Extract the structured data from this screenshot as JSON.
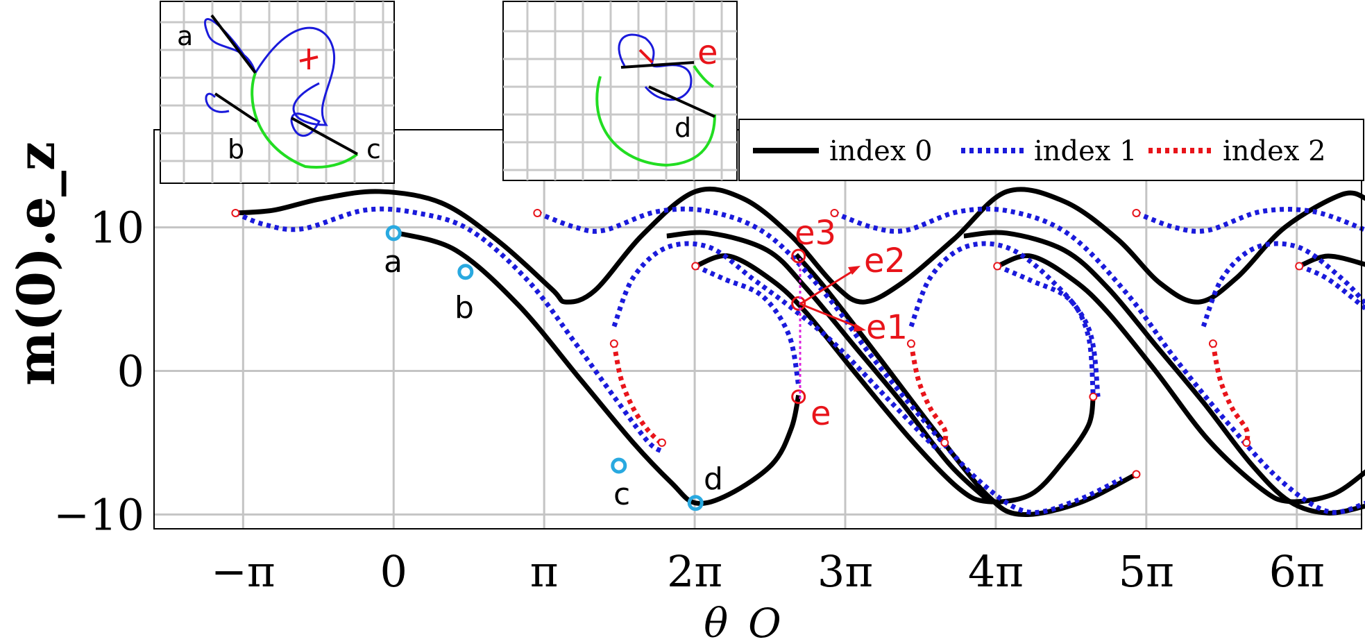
{
  "chart_data": {
    "type": "line",
    "ylabel": "m(0).e_z",
    "xlabel": "θ_O",
    "x_ticks": [
      {
        "value": -3.14159,
        "label": "−π"
      },
      {
        "value": 0,
        "label": "0"
      },
      {
        "value": 3.14159,
        "label": "π"
      },
      {
        "value": 6.28319,
        "label": "2π"
      },
      {
        "value": 9.42478,
        "label": "3π"
      },
      {
        "value": 12.56637,
        "label": "4π"
      },
      {
        "value": 15.70796,
        "label": "5π"
      },
      {
        "value": 18.84956,
        "label": "6π"
      }
    ],
    "y_ticks": [
      {
        "value": 10,
        "label": "10"
      },
      {
        "value": 0,
        "label": "0"
      },
      {
        "value": -10,
        "label": "−10"
      }
    ],
    "xlim": [
      -5.0,
      20.2
    ],
    "ylim": [
      -11.0,
      16.8
    ],
    "grid": true,
    "legend": {
      "placement": "top-right",
      "entries": [
        {
          "label": "index 0",
          "color": "#000000",
          "style": "solid"
        },
        {
          "label": "index 1",
          "color": "#1a1adb",
          "style": "dotted"
        },
        {
          "label": "index 2",
          "color": "#e8141a",
          "style": "dotted"
        }
      ]
    },
    "series": [
      {
        "name": "index 0",
        "color": "#000000",
        "style": "solid",
        "values": [
          [
            -3.3,
            11.0
          ],
          [
            -2.5,
            11.2
          ],
          [
            -1.5,
            12.0
          ],
          [
            -0.3,
            12.5
          ],
          [
            1.0,
            11.7
          ],
          [
            2.2,
            9.0
          ],
          [
            3.3,
            5.7
          ],
          [
            3.6,
            4.8
          ],
          [
            4.2,
            5.6
          ],
          [
            5.2,
            9.5
          ],
          [
            6.3,
            12.5
          ],
          [
            7.3,
            12.0
          ],
          [
            8.3,
            9.4
          ],
          [
            9.2,
            6.0
          ],
          [
            9.8,
            4.8
          ],
          [
            10.6,
            6.1
          ],
          [
            11.7,
            9.2
          ],
          [
            12.8,
            12.5
          ],
          [
            14.0,
            11.8
          ],
          [
            15.1,
            9.2
          ],
          [
            16.0,
            6.1
          ],
          [
            16.8,
            4.8
          ],
          [
            17.6,
            6.5
          ],
          [
            18.6,
            10.0
          ],
          [
            19.8,
            12.3
          ],
          [
            20.3,
            12.0
          ]
        ]
      },
      {
        "name": "index 0",
        "color": "#000000",
        "style": "solid",
        "values": [
          [
            0.1,
            9.6
          ],
          [
            1.3,
            8.4
          ],
          [
            2.6,
            4.6
          ],
          [
            3.9,
            -0.6
          ],
          [
            5.0,
            -5.0
          ],
          [
            5.8,
            -7.8
          ],
          [
            6.3,
            -9.2
          ],
          [
            7.0,
            -8.6
          ],
          [
            7.9,
            -6.5
          ],
          [
            8.3,
            -4.0
          ],
          [
            8.45,
            -1.7
          ]
        ]
      },
      {
        "name": "index 0",
        "color": "#000000",
        "style": "solid",
        "values": [
          [
            6.3,
            7.3
          ],
          [
            7.0,
            8.0
          ],
          [
            7.9,
            6.3
          ],
          [
            8.6,
            4.1
          ],
          [
            9.6,
            0.0
          ],
          [
            10.8,
            -4.8
          ],
          [
            11.8,
            -8.2
          ],
          [
            12.4,
            -9.1
          ],
          [
            13.3,
            -8.6
          ],
          [
            14.0,
            -6.2
          ],
          [
            14.5,
            -3.8
          ],
          [
            14.6,
            -1.8
          ]
        ]
      },
      {
        "name": "index 0",
        "color": "#000000",
        "style": "solid",
        "values": [
          [
            8.4,
            8.1
          ],
          [
            9.0,
            5.8
          ],
          [
            10.0,
            1.5
          ],
          [
            11.3,
            -4.2
          ],
          [
            12.4,
            -8.7
          ],
          [
            13.1,
            -10.0
          ],
          [
            14.3,
            -9.2
          ],
          [
            15.5,
            -7.2
          ]
        ]
      },
      {
        "name": "index 0",
        "color": "#000000",
        "style": "solid",
        "values": [
          [
            5.7,
            9.4
          ],
          [
            6.6,
            9.6
          ],
          [
            7.8,
            8.4
          ],
          [
            8.6,
            5.8
          ],
          [
            9.6,
            1.8
          ],
          [
            10.6,
            -2.2
          ],
          [
            11.6,
            -6.5
          ],
          [
            12.4,
            -9.0
          ]
        ]
      },
      {
        "name": "index 0",
        "color": "#000000",
        "style": "solid",
        "values": [
          [
            12.6,
            7.3
          ],
          [
            13.3,
            8.0
          ],
          [
            14.2,
            6.3
          ],
          [
            14.9,
            4.1
          ],
          [
            15.9,
            0.0
          ],
          [
            17.0,
            -4.8
          ],
          [
            18.1,
            -8.2
          ],
          [
            18.7,
            -9.1
          ],
          [
            19.6,
            -8.6
          ],
          [
            20.3,
            -7.0
          ]
        ]
      },
      {
        "name": "index 0",
        "color": "#000000",
        "style": "solid",
        "values": [
          [
            11.9,
            9.4
          ],
          [
            12.8,
            9.6
          ],
          [
            14.0,
            8.4
          ],
          [
            14.9,
            5.8
          ],
          [
            15.9,
            1.8
          ],
          [
            16.9,
            -2.2
          ],
          [
            17.9,
            -6.5
          ],
          [
            18.7,
            -9.1
          ],
          [
            19.5,
            -9.9
          ],
          [
            20.3,
            -9.4
          ]
        ]
      },
      {
        "name": "index 0",
        "color": "#000000",
        "style": "solid",
        "values": [
          [
            18.9,
            7.3
          ],
          [
            19.5,
            8.0
          ],
          [
            20.3,
            7.4
          ]
        ]
      },
      {
        "name": "index 1",
        "color": "#1a1adb",
        "style": "dotted",
        "values": [
          [
            -3.3,
            11.0
          ],
          [
            -2.7,
            10.2
          ],
          [
            -1.9,
            9.9
          ],
          [
            -0.6,
            11.2
          ],
          [
            0.5,
            11.0
          ],
          [
            1.6,
            9.8
          ],
          [
            2.8,
            6.3
          ],
          [
            3.8,
            1.9
          ],
          [
            4.6,
            -1.8
          ],
          [
            5.3,
            -4.9
          ],
          [
            5.6,
            -5.6
          ]
        ]
      },
      {
        "name": "index 1",
        "color": "#1a1adb",
        "style": "dotted",
        "values": [
          [
            3.0,
            11.0
          ],
          [
            3.8,
            10.0
          ],
          [
            4.4,
            9.8
          ],
          [
            5.5,
            11.1
          ],
          [
            6.6,
            11.1
          ],
          [
            7.8,
            9.5
          ],
          [
            9.0,
            5.4
          ],
          [
            10.0,
            0.9
          ],
          [
            11.1,
            -3.6
          ],
          [
            12.2,
            -7.6
          ],
          [
            13.2,
            -9.8
          ],
          [
            14.2,
            -9.1
          ],
          [
            15.2,
            -7.5
          ]
        ]
      },
      {
        "name": "index 1",
        "color": "#1a1adb",
        "style": "dotted",
        "values": [
          [
            9.2,
            11.0
          ],
          [
            10.0,
            10.0
          ],
          [
            10.7,
            9.8
          ],
          [
            11.8,
            11.1
          ],
          [
            12.9,
            11.1
          ],
          [
            14.1,
            9.5
          ],
          [
            15.3,
            5.4
          ],
          [
            16.3,
            0.9
          ],
          [
            17.4,
            -3.6
          ],
          [
            18.5,
            -7.6
          ],
          [
            19.5,
            -9.8
          ],
          [
            20.3,
            -9.2
          ]
        ]
      },
      {
        "name": "index 1",
        "color": "#1a1adb",
        "style": "dotted",
        "values": [
          [
            15.5,
            11.0
          ],
          [
            16.3,
            10.0
          ],
          [
            17.0,
            9.8
          ],
          [
            18.1,
            11.1
          ],
          [
            19.2,
            11.1
          ],
          [
            20.3,
            9.8
          ]
        ]
      },
      {
        "name": "index 1",
        "color": "#1a1adb",
        "style": "dotted",
        "values": [
          [
            6.3,
            7.3
          ],
          [
            6.9,
            6.4
          ],
          [
            7.7,
            5.2
          ],
          [
            8.25,
            2.5
          ],
          [
            8.45,
            -1.0
          ]
        ]
      },
      {
        "name": "index 1",
        "color": "#1a1adb",
        "style": "dotted",
        "values": [
          [
            4.6,
            3.1
          ],
          [
            5.0,
            6.5
          ],
          [
            5.7,
            8.6
          ],
          [
            6.6,
            8.6
          ],
          [
            7.5,
            6.4
          ],
          [
            8.3,
            4.4
          ],
          [
            9.2,
            1.9
          ],
          [
            10.3,
            -1.9
          ],
          [
            11.2,
            -5.0
          ],
          [
            11.4,
            -5.5
          ]
        ]
      },
      {
        "name": "index 1",
        "color": "#1a1adb",
        "style": "dotted",
        "values": [
          [
            10.8,
            3.1
          ],
          [
            11.2,
            6.5
          ],
          [
            11.9,
            8.6
          ],
          [
            12.8,
            8.6
          ],
          [
            13.7,
            6.4
          ],
          [
            14.5,
            3.0
          ],
          [
            14.7,
            -1.8
          ]
        ]
      },
      {
        "name": "index 1",
        "color": "#1a1adb",
        "style": "dotted",
        "values": [
          [
            12.6,
            7.3
          ],
          [
            13.3,
            6.3
          ],
          [
            14.1,
            5.0
          ],
          [
            14.5,
            2.4
          ],
          [
            14.6,
            -1.7
          ]
        ]
      },
      {
        "name": "index 1",
        "color": "#1a1adb",
        "style": "dotted",
        "values": [
          [
            16.9,
            3.1
          ],
          [
            17.3,
            6.5
          ],
          [
            18.0,
            8.6
          ],
          [
            18.9,
            8.6
          ],
          [
            19.8,
            6.4
          ],
          [
            20.3,
            4.6
          ]
        ]
      },
      {
        "name": "index 1",
        "color": "#1a1adb",
        "style": "dotted",
        "values": [
          [
            18.9,
            7.3
          ],
          [
            19.5,
            6.4
          ],
          [
            20.3,
            4.3
          ]
        ]
      },
      {
        "name": "index 2",
        "color": "#e8141a",
        "style": "dotted",
        "values": [
          [
            4.6,
            1.9
          ],
          [
            4.75,
            -0.6
          ],
          [
            5.0,
            -2.6
          ],
          [
            5.3,
            -4.1
          ],
          [
            5.6,
            -5.1
          ]
        ]
      },
      {
        "name": "index 2",
        "color": "#e8141a",
        "style": "dotted",
        "values": [
          [
            10.8,
            1.9
          ],
          [
            10.95,
            -0.6
          ],
          [
            11.2,
            -2.6
          ],
          [
            11.5,
            -4.1
          ],
          [
            11.5,
            -5.0
          ]
        ]
      },
      {
        "name": "index 2",
        "color": "#e8141a",
        "style": "dotted",
        "values": [
          [
            17.1,
            1.9
          ],
          [
            17.25,
            -0.6
          ],
          [
            17.5,
            -2.6
          ],
          [
            17.8,
            -4.1
          ],
          [
            17.8,
            -5.0
          ]
        ]
      }
    ],
    "endpoints": [
      [
        -3.3,
        11.0
      ],
      [
        3.0,
        11.0
      ],
      [
        9.2,
        11.0
      ],
      [
        15.5,
        11.0
      ],
      [
        6.3,
        7.3
      ],
      [
        12.6,
        7.3
      ],
      [
        18.9,
        7.3
      ],
      [
        4.6,
        1.9
      ],
      [
        10.8,
        1.9
      ],
      [
        17.1,
        1.9
      ],
      [
        5.6,
        -5.0
      ],
      [
        11.5,
        -5.0
      ],
      [
        17.8,
        -5.0
      ],
      [
        14.6,
        -1.8
      ],
      [
        15.5,
        -7.2
      ]
    ],
    "marked_points": [
      {
        "label": "a",
        "x": 0.0,
        "y": 9.6
      },
      {
        "label": "b",
        "x": 1.5,
        "y": 6.9
      },
      {
        "label": "c",
        "x": 4.7,
        "y": -6.6
      },
      {
        "label": "d",
        "x": 6.3,
        "y": -9.2
      }
    ],
    "e_points": [
      {
        "label": "e",
        "x": 8.45,
        "y": -1.8
      },
      {
        "label": "e1",
        "x": 8.45,
        "y": 4.7
      },
      {
        "label": "e2",
        "x": 8.45,
        "y": 4.7
      },
      {
        "label": "e3",
        "x": 8.45,
        "y": 8.0
      }
    ],
    "insets": [
      {
        "labels": [
          "a",
          "b",
          "c"
        ]
      },
      {
        "labels": [
          "e",
          "d"
        ]
      }
    ]
  }
}
